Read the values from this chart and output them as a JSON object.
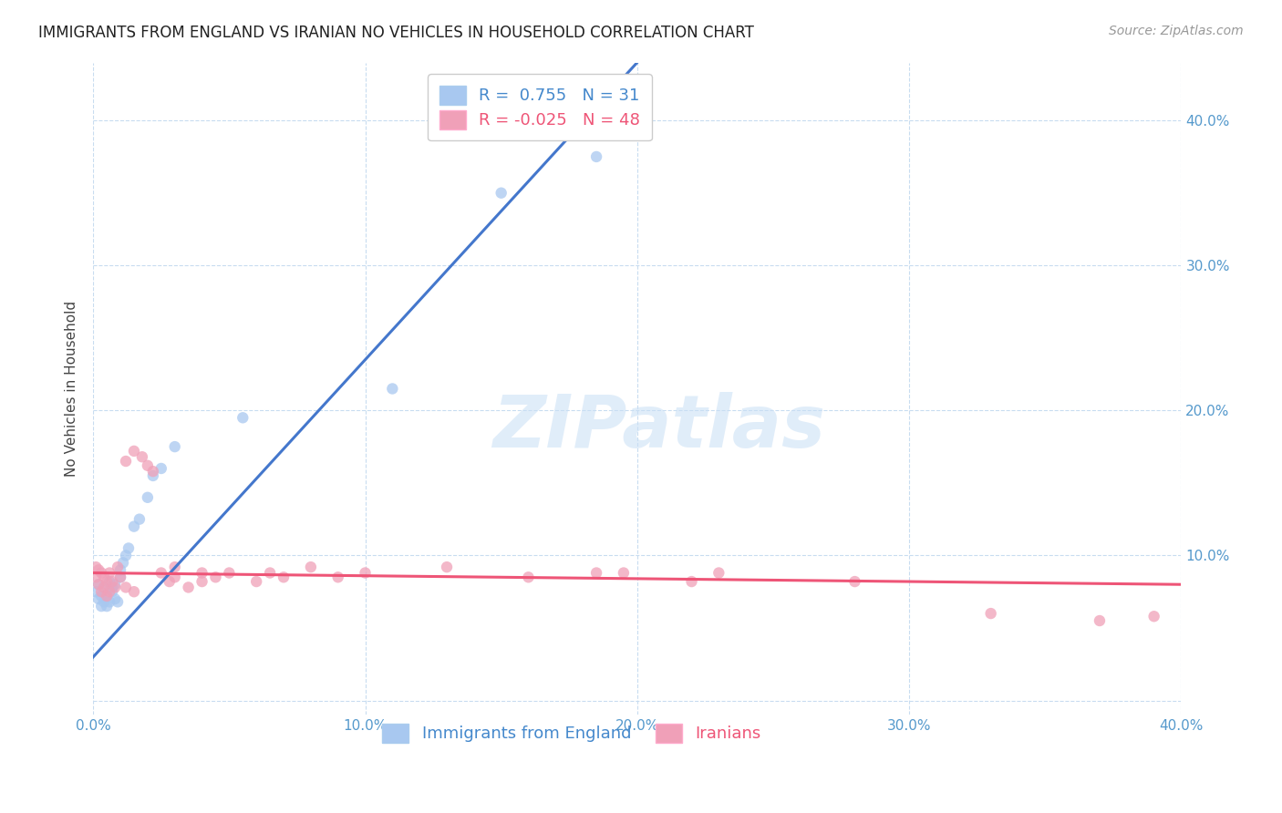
{
  "title": "IMMIGRANTS FROM ENGLAND VS IRANIAN NO VEHICLES IN HOUSEHOLD CORRELATION CHART",
  "source": "Source: ZipAtlas.com",
  "ylabel": "No Vehicles in Household",
  "xlim": [
    0.0,
    0.4
  ],
  "ylim": [
    -0.01,
    0.44
  ],
  "x_ticks": [
    0.0,
    0.1,
    0.2,
    0.3,
    0.4
  ],
  "x_tick_labels": [
    "0.0%",
    "10.0%",
    "20.0%",
    "30.0%",
    "40.0%"
  ],
  "y_ticks_right": [
    0.1,
    0.2,
    0.3,
    0.4
  ],
  "y_tick_labels_right": [
    "10.0%",
    "20.0%",
    "30.0%",
    "40.0%"
  ],
  "watermark_text": "ZIPatlas",
  "blue_color": "#A8C8F0",
  "pink_color": "#F0A0B8",
  "blue_line_color": "#4477CC",
  "pink_line_color": "#EE5577",
  "legend_R_blue": " 0.755",
  "legend_N_blue": "31",
  "legend_R_pink": "-0.025",
  "legend_N_pink": "48",
  "legend_label_blue": "Immigrants from England",
  "legend_label_pink": "Iranians",
  "blue_points_x": [
    0.001,
    0.002,
    0.002,
    0.003,
    0.003,
    0.004,
    0.004,
    0.005,
    0.005,
    0.006,
    0.006,
    0.007,
    0.007,
    0.008,
    0.008,
    0.009,
    0.01,
    0.01,
    0.011,
    0.012,
    0.013,
    0.015,
    0.017,
    0.02,
    0.022,
    0.025,
    0.03,
    0.055,
    0.11,
    0.15,
    0.185
  ],
  "blue_points_y": [
    0.075,
    0.07,
    0.08,
    0.065,
    0.072,
    0.068,
    0.078,
    0.065,
    0.072,
    0.068,
    0.082,
    0.075,
    0.078,
    0.07,
    0.08,
    0.068,
    0.085,
    0.09,
    0.095,
    0.1,
    0.105,
    0.12,
    0.125,
    0.14,
    0.155,
    0.16,
    0.175,
    0.195,
    0.215,
    0.35,
    0.375
  ],
  "pink_points_x": [
    0.001,
    0.001,
    0.002,
    0.002,
    0.003,
    0.003,
    0.004,
    0.004,
    0.005,
    0.005,
    0.006,
    0.006,
    0.007,
    0.008,
    0.009,
    0.01,
    0.012,
    0.012,
    0.015,
    0.015,
    0.018,
    0.02,
    0.022,
    0.025,
    0.028,
    0.03,
    0.03,
    0.035,
    0.04,
    0.04,
    0.045,
    0.05,
    0.06,
    0.065,
    0.07,
    0.08,
    0.09,
    0.1,
    0.13,
    0.16,
    0.185,
    0.195,
    0.22,
    0.23,
    0.28,
    0.33,
    0.37,
    0.39
  ],
  "pink_points_y": [
    0.085,
    0.092,
    0.08,
    0.09,
    0.075,
    0.088,
    0.078,
    0.085,
    0.072,
    0.082,
    0.075,
    0.088,
    0.082,
    0.078,
    0.092,
    0.085,
    0.078,
    0.165,
    0.172,
    0.075,
    0.168,
    0.162,
    0.158,
    0.088,
    0.082,
    0.085,
    0.092,
    0.078,
    0.082,
    0.088,
    0.085,
    0.088,
    0.082,
    0.088,
    0.085,
    0.092,
    0.085,
    0.088,
    0.092,
    0.085,
    0.088,
    0.088,
    0.082,
    0.088,
    0.082,
    0.06,
    0.055,
    0.058
  ],
  "title_fontsize": 12,
  "source_fontsize": 10,
  "tick_fontsize": 11,
  "legend_fontsize": 13,
  "ylabel_fontsize": 11,
  "marker_size": 80,
  "blue_line_x": [
    -0.02,
    0.4
  ],
  "blue_line_slope": 2.05,
  "blue_line_intercept": 0.03,
  "pink_line_x": [
    0.0,
    0.4
  ],
  "pink_line_slope": -0.02,
  "pink_line_intercept": 0.088
}
